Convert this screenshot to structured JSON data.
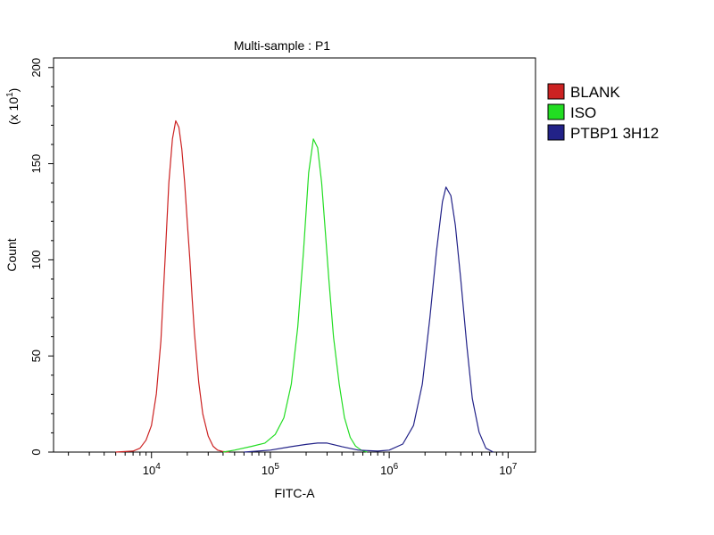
{
  "chart_data": {
    "type": "line",
    "title": "Multi-sample : P1",
    "xlabel": "FITC-A",
    "ylabel": "Count",
    "y_multiplier_label": "(x 10",
    "y_multiplier_exp": "1",
    "y_multiplier_close": ")",
    "x_scale": "log",
    "xlim": [
      1500,
      17000000
    ],
    "ylim": [
      0,
      205
    ],
    "y_ticks": [
      0,
      50,
      100,
      150,
      200
    ],
    "y_tick_labels": [
      "0",
      "50",
      "100",
      "150",
      "200"
    ],
    "x_major_ticks": [
      10000,
      100000,
      1000000,
      10000000
    ],
    "x_tick_base": "10",
    "x_tick_exps": [
      "4",
      "5",
      "6",
      "7"
    ],
    "grid": false,
    "legend_position": "right",
    "series": [
      {
        "name": "BLANK",
        "color": "#cc2222",
        "x": [
          5000,
          7000,
          8000,
          9000,
          10000,
          11000,
          12000,
          13000,
          14000,
          15000,
          16000,
          17000,
          18000,
          19000,
          20000,
          21000,
          22000,
          23000,
          25000,
          27000,
          30000,
          33000,
          36000,
          40000,
          45000
        ],
        "y": [
          0,
          0.5,
          2,
          6,
          14,
          30,
          58,
          100,
          140,
          163,
          172,
          169,
          158,
          140,
          120,
          100,
          80,
          62,
          36,
          20,
          8,
          3,
          1,
          0.3,
          0
        ]
      },
      {
        "name": "ISO",
        "color": "#22dd22",
        "x": [
          40000,
          50000,
          70000,
          90000,
          110000,
          130000,
          150000,
          170000,
          190000,
          210000,
          230000,
          250000,
          270000,
          290000,
          310000,
          340000,
          380000,
          420000,
          470000,
          520000,
          580000,
          650000
        ],
        "y": [
          0,
          1,
          3,
          5,
          9,
          18,
          35,
          65,
          105,
          145,
          163,
          158,
          140,
          115,
          90,
          60,
          35,
          18,
          8,
          3,
          1,
          0
        ]
      },
      {
        "name": "PTBP1 3H12",
        "color": "#222288",
        "x": [
          60000,
          100000,
          150000,
          200000,
          250000,
          300000,
          400000,
          550000,
          800000,
          1000000,
          1300000,
          1600000,
          1900000,
          2200000,
          2500000,
          2800000,
          3000000,
          3300000,
          3600000,
          4000000,
          4500000,
          5000000,
          5700000,
          6500000,
          7500000
        ],
        "y": [
          0,
          1,
          2.5,
          4,
          5,
          4.5,
          3,
          1,
          0.5,
          1,
          4,
          14,
          35,
          70,
          105,
          130,
          138,
          133,
          118,
          90,
          55,
          28,
          10,
          2,
          0
        ]
      }
    ]
  }
}
